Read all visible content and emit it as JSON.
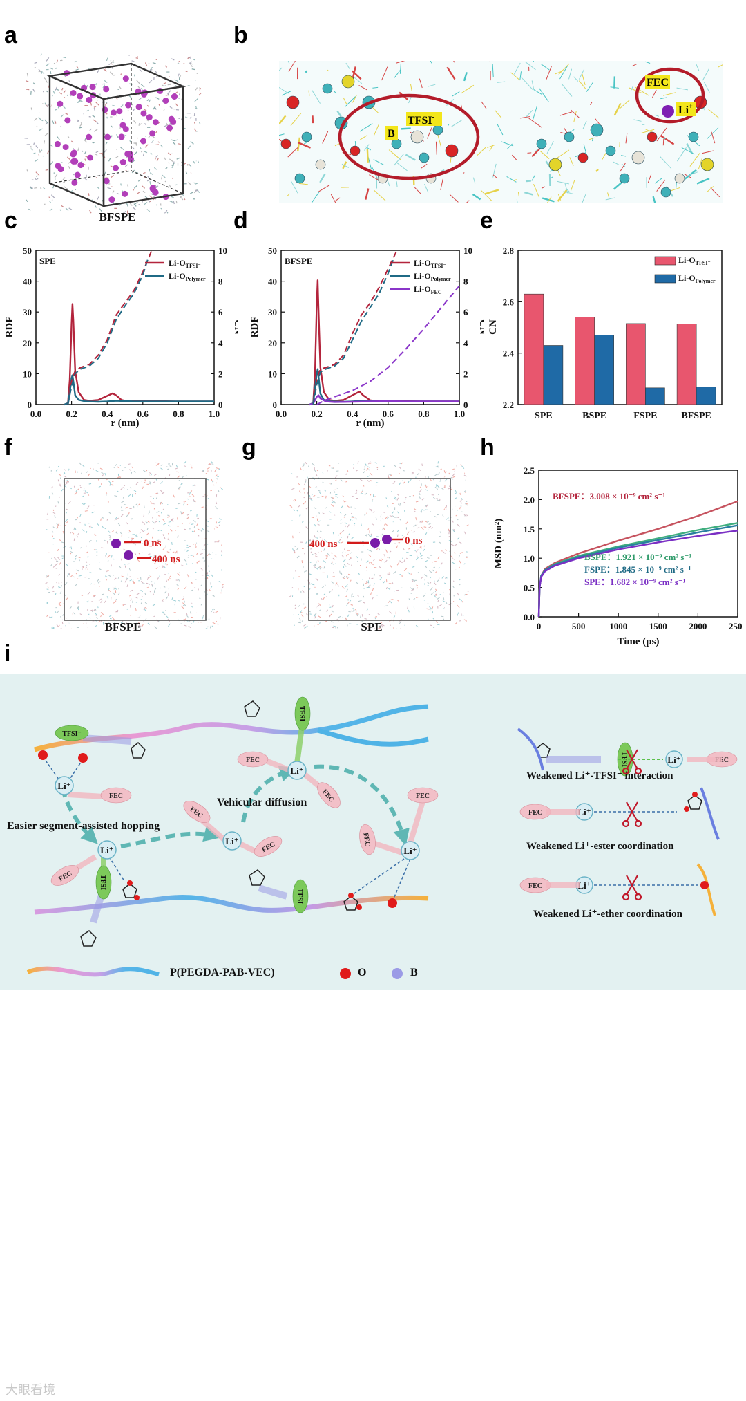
{
  "panel_letters": [
    "a",
    "b",
    "c",
    "d",
    "e",
    "f",
    "g",
    "h",
    "i"
  ],
  "panel_a": {
    "caption": "BFSPE"
  },
  "panel_b": {
    "labels": {
      "tfsi": "TFSI",
      "tfsi_sup": "-",
      "b": "B",
      "fec": "FEC",
      "li": "Li",
      "li_sup": "+"
    }
  },
  "panel_f": {
    "caption": "BFSPE",
    "t0": "0 ns",
    "t1": "400 ns"
  },
  "panel_g": {
    "caption": "SPE",
    "t0": "0 ns",
    "t1": "400 ns"
  },
  "chart_data": [
    {
      "id": "c",
      "type": "line",
      "title": "SPE",
      "xlabel": "r  (nm)",
      "ylabel": "RDF",
      "y2label": "CN",
      "xlim": [
        0,
        1.0
      ],
      "ylim": [
        0,
        50
      ],
      "y2lim": [
        0,
        10
      ],
      "xticks": [
        "0.0",
        "0.2",
        "0.4",
        "0.6",
        "0.8",
        "1.0"
      ],
      "yticks": [
        "0",
        "10",
        "20",
        "30",
        "40",
        "50"
      ],
      "y2ticks": [
        "0",
        "2",
        "4",
        "6",
        "8",
        "10"
      ],
      "legend_position": "top-right",
      "legend": [
        {
          "text": "Li-O",
          "sub": "TFSI⁻",
          "color": "#b3243c"
        },
        {
          "text": "Li-O",
          "sub": "Polymer",
          "color": "#1f6a85"
        }
      ],
      "series": [
        {
          "name": "Li-O TFSI⁻",
          "kind": "rdf",
          "color": "#b3243c",
          "x": [
            0.16,
            0.18,
            0.19,
            0.2,
            0.205,
            0.21,
            0.22,
            0.24,
            0.27,
            0.3,
            0.35,
            0.4,
            0.43,
            0.45,
            0.48,
            0.52,
            0.6,
            0.65,
            0.7,
            0.8,
            0.9,
            1.0
          ],
          "y": [
            0,
            0.5,
            8,
            26,
            32.6,
            27,
            11,
            4,
            1.5,
            1.2,
            1.5,
            2.8,
            3.6,
            3,
            1.5,
            1,
            1.2,
            1.3,
            1.1,
            1,
            1,
            1
          ]
        },
        {
          "name": "Li-O Polymer",
          "kind": "rdf",
          "color": "#1f6a85",
          "x": [
            0.16,
            0.18,
            0.19,
            0.2,
            0.205,
            0.21,
            0.22,
            0.24,
            0.28,
            0.35,
            0.4,
            0.45,
            0.55,
            0.65,
            0.8,
            1.0
          ],
          "y": [
            0,
            0.5,
            4,
            8.5,
            9.5,
            7.5,
            3,
            1.5,
            1,
            0.9,
            1,
            1.2,
            1,
            1,
            1,
            1
          ]
        },
        {
          "name": "Li-O TFSI⁻ CN",
          "kind": "cn",
          "color": "#b3243c",
          "x": [
            0.18,
            0.2,
            0.22,
            0.25,
            0.3,
            0.35,
            0.4,
            0.45,
            0.5,
            0.55,
            0.6,
            0.65
          ],
          "y": [
            0,
            1.5,
            2.2,
            2.4,
            2.6,
            3.2,
            4.2,
            5.8,
            6.6,
            7.4,
            8.6,
            10
          ]
        },
        {
          "name": "Li-O Polymer CN",
          "kind": "cn",
          "color": "#1f6a85",
          "x": [
            0.18,
            0.2,
            0.22,
            0.25,
            0.3,
            0.35,
            0.4,
            0.45,
            0.5,
            0.55,
            0.6,
            0.63
          ],
          "y": [
            0,
            1.2,
            2.0,
            2.3,
            2.5,
            3.0,
            4.0,
            5.5,
            6.4,
            7.2,
            8.4,
            9.5
          ]
        }
      ]
    },
    {
      "id": "d",
      "type": "line",
      "title": "BFSPE",
      "xlabel": "r  (nm)",
      "ylabel": "RDF",
      "y2label": "CN",
      "xlim": [
        0,
        1.0
      ],
      "ylim": [
        0,
        50
      ],
      "y2lim": [
        0,
        10
      ],
      "xticks": [
        "0.0",
        "0.2",
        "0.4",
        "0.6",
        "0.8",
        "1.0"
      ],
      "yticks": [
        "0",
        "10",
        "20",
        "30",
        "40",
        "50"
      ],
      "y2ticks": [
        "0",
        "2",
        "4",
        "6",
        "8",
        "10"
      ],
      "legend_position": "top-right",
      "legend": [
        {
          "text": "Li-O",
          "sub": "TFSI⁻",
          "color": "#b3243c"
        },
        {
          "text": "Li-O",
          "sub": "Polymer",
          "color": "#1f6a85"
        },
        {
          "text": "Li-O",
          "sub": "FEC",
          "color": "#8a35c9"
        }
      ],
      "series": [
        {
          "name": "Li-O TFSI⁻",
          "kind": "rdf",
          "color": "#b3243c",
          "x": [
            0.16,
            0.18,
            0.19,
            0.2,
            0.205,
            0.21,
            0.22,
            0.24,
            0.27,
            0.3,
            0.35,
            0.4,
            0.44,
            0.46,
            0.5,
            0.55,
            0.6,
            0.7,
            0.8,
            1.0
          ],
          "y": [
            0,
            0.5,
            10,
            33,
            40.3,
            30,
            12,
            4,
            1.5,
            1.2,
            1.5,
            3,
            4.2,
            3,
            1.4,
            1,
            1.2,
            1.1,
            1,
            1
          ]
        },
        {
          "name": "Li-O Polymer",
          "kind": "rdf",
          "color": "#1f6a85",
          "x": [
            0.16,
            0.18,
            0.19,
            0.2,
            0.205,
            0.21,
            0.22,
            0.24,
            0.28,
            0.35,
            0.4,
            0.45,
            0.55,
            0.65,
            0.8,
            1.0
          ],
          "y": [
            0,
            0.5,
            5,
            10,
            11.5,
            9,
            3.5,
            1.5,
            1,
            0.9,
            1,
            1.2,
            1,
            1,
            1,
            1
          ]
        },
        {
          "name": "Li-O FEC",
          "kind": "rdf",
          "color": "#8a35c9",
          "x": [
            0.16,
            0.18,
            0.2,
            0.21,
            0.22,
            0.25,
            0.3,
            0.4,
            0.5,
            0.6,
            0.7,
            0.8,
            1.0
          ],
          "y": [
            0,
            0.3,
            2.5,
            3,
            2,
            1,
            0.8,
            0.9,
            1,
            1.1,
            1,
            1,
            1
          ]
        },
        {
          "name": "Li-O TFSI⁻ CN",
          "kind": "cn",
          "color": "#b3243c",
          "x": [
            0.18,
            0.2,
            0.22,
            0.25,
            0.3,
            0.35,
            0.4,
            0.45,
            0.5,
            0.55,
            0.6,
            0.65
          ],
          "y": [
            0,
            1.6,
            2.3,
            2.4,
            2.6,
            3.2,
            4.6,
            5.8,
            6.6,
            7.6,
            8.8,
            10
          ]
        },
        {
          "name": "Li-O Polymer CN",
          "kind": "cn",
          "color": "#1f6a85",
          "x": [
            0.18,
            0.2,
            0.22,
            0.25,
            0.3,
            0.35,
            0.4,
            0.45,
            0.5,
            0.55,
            0.6,
            0.63
          ],
          "y": [
            0,
            1.3,
            2.1,
            2.3,
            2.5,
            3.0,
            4.2,
            5.4,
            6.3,
            7.2,
            8.5,
            9.4
          ]
        },
        {
          "name": "Li-O FEC CN",
          "kind": "cn",
          "color": "#8a35c9",
          "x": [
            0.2,
            0.25,
            0.3,
            0.4,
            0.5,
            0.6,
            0.7,
            0.8,
            0.9,
            1.0
          ],
          "y": [
            0,
            0.3,
            0.5,
            0.9,
            1.5,
            2.4,
            3.6,
            4.9,
            6.3,
            7.7
          ]
        }
      ]
    },
    {
      "id": "e",
      "type": "bar",
      "ylabel": "CN",
      "categories": [
        "SPE",
        "BSPE",
        "FSPE",
        "BFSPE"
      ],
      "ylim": [
        2.2,
        2.8
      ],
      "yticks": [
        "2.2",
        "2.4",
        "2.6",
        "2.8"
      ],
      "legend_position": "top-right",
      "legend": [
        {
          "text": "Li-O",
          "sub": "TFSI⁻",
          "color": "#e8566e"
        },
        {
          "text": "Li-O",
          "sub": "Polymer",
          "color": "#1f6aa6"
        }
      ],
      "series": [
        {
          "name": "Li-O TFSI⁻",
          "color": "#e8566e",
          "values": [
            2.63,
            2.54,
            2.515,
            2.513
          ]
        },
        {
          "name": "Li-O Polymer",
          "color": "#1f6aa6",
          "values": [
            2.43,
            2.47,
            2.265,
            2.268
          ]
        }
      ]
    },
    {
      "id": "h",
      "type": "line",
      "xlabel": "Time (ps)",
      "ylabel": "MSD (nm²)",
      "xlim": [
        0,
        2500
      ],
      "ylim": [
        0,
        2.5
      ],
      "xticks": [
        "0",
        "500",
        "1000",
        "1500",
        "2000",
        "2500"
      ],
      "yticks": [
        "0.0",
        "0.5",
        "1.0",
        "1.5",
        "2.0",
        "2.5"
      ],
      "annotations": [
        {
          "text": "BFSPE：3.008 × 10⁻⁹ cm² s⁻¹",
          "color": "#b3243c"
        },
        {
          "text": "BSPE：1.921 × 10⁻⁹ cm² s⁻¹",
          "color": "#2f9b6a"
        },
        {
          "text": "FSPE：1.845 × 10⁻⁹ cm² s⁻¹",
          "color": "#1f6a85"
        },
        {
          "text": "SPE：1.682 × 10⁻⁹ cm² s⁻¹",
          "color": "#7a2fc4"
        }
      ],
      "series": [
        {
          "name": "BFSPE",
          "color": "#c6535f",
          "x": [
            0,
            10,
            30,
            80,
            200,
            500,
            1000,
            1500,
            2000,
            2500
          ],
          "y": [
            0,
            0.5,
            0.7,
            0.82,
            0.92,
            1.08,
            1.3,
            1.5,
            1.72,
            1.97
          ]
        },
        {
          "name": "BSPE",
          "color": "#3fae7e",
          "x": [
            0,
            10,
            30,
            80,
            200,
            500,
            1000,
            1500,
            2000,
            2500
          ],
          "y": [
            0,
            0.5,
            0.7,
            0.8,
            0.9,
            1.04,
            1.2,
            1.34,
            1.48,
            1.6
          ]
        },
        {
          "name": "FSPE",
          "color": "#2a7fa0",
          "x": [
            0,
            10,
            30,
            80,
            200,
            500,
            1000,
            1500,
            2000,
            2500
          ],
          "y": [
            0,
            0.5,
            0.7,
            0.8,
            0.89,
            1.02,
            1.18,
            1.31,
            1.44,
            1.56
          ]
        },
        {
          "name": "SPE",
          "color": "#7a2fc4",
          "x": [
            0,
            10,
            30,
            80,
            200,
            500,
            1000,
            1500,
            2000,
            2500
          ],
          "y": [
            0,
            0.5,
            0.68,
            0.78,
            0.87,
            1.0,
            1.15,
            1.27,
            1.38,
            1.47
          ]
        }
      ]
    }
  ],
  "panel_i": {
    "labels": {
      "tfsi": "TFSI⁻",
      "tfsi_plain": "TFSI",
      "fec": "FEC",
      "li": "Li⁺",
      "hopping": "Easier segment-assisted hopping",
      "vehicular": "Vehicular diffusion",
      "weak1": "Weakened  Li⁺-TFSI⁻  interaction",
      "weak2": "Weakened  Li⁺-ester coordination",
      "weak3": "Weakened  Li⁺-ether coordination",
      "polymer": "P(PEGDA-PAB-VEC)",
      "o": "O",
      "b": "B"
    },
    "colors": {
      "fec": "#f2c0c8",
      "tfsi": "#7cc95a",
      "li": "#d9eef4",
      "o": "#e01b1b",
      "b": "#9b9be6"
    }
  },
  "watermark": "大眼看境"
}
